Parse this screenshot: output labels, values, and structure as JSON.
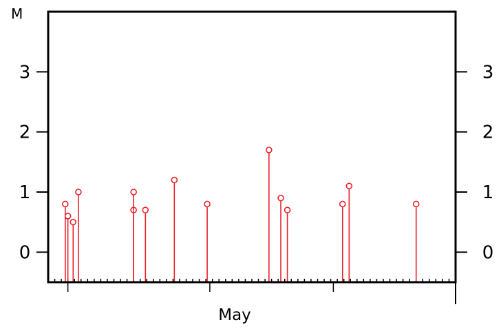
{
  "chart_data": {
    "type": "stem",
    "ylabel": "M",
    "xlabel": "May",
    "ylim": [
      -0.5,
      4
    ],
    "xlim": [
      0,
      31
    ],
    "yticks": [
      0,
      1,
      2,
      3
    ],
    "y_tick_labels": [
      "0",
      "1",
      "2",
      "3"
    ],
    "x_minor_tick_step": 0.5,
    "x_major_ticks": [
      1.5,
      12.3,
      21.7,
      31
    ],
    "baseline": -0.5,
    "marker": "open-circle",
    "color": "#e8202a",
    "axis_color": "#000000",
    "grid": false,
    "legend": "none",
    "points": [
      {
        "x": 1.3,
        "y": 0.8
      },
      {
        "x": 1.5,
        "y": 0.6
      },
      {
        "x": 1.9,
        "y": 0.5
      },
      {
        "x": 2.3,
        "y": 1.0
      },
      {
        "x": 6.5,
        "y": 0.7
      },
      {
        "x": 6.5,
        "y": 1.0
      },
      {
        "x": 7.4,
        "y": 0.7
      },
      {
        "x": 9.6,
        "y": 1.2
      },
      {
        "x": 12.1,
        "y": 0.8
      },
      {
        "x": 16.8,
        "y": 1.7
      },
      {
        "x": 17.7,
        "y": 0.9
      },
      {
        "x": 18.2,
        "y": 0.7
      },
      {
        "x": 22.4,
        "y": 0.8
      },
      {
        "x": 22.9,
        "y": 1.1
      },
      {
        "x": 28.0,
        "y": 0.8
      }
    ]
  }
}
